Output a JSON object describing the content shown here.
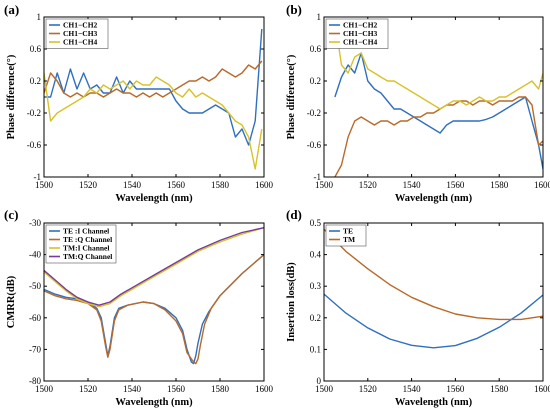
{
  "chart_data": [
    {
      "type": "line",
      "panel_label": "(a)",
      "xlabel": "Wavelength (nm)",
      "ylabel": "Phase difference(°)",
      "xlim": [
        1500,
        1600
      ],
      "ylim": [
        -1,
        1
      ],
      "xticks": [
        1500,
        1520,
        1540,
        1560,
        1580,
        1600
      ],
      "xtick_labels": [
        "1500",
        "1520",
        "1540",
        "1560",
        "1580",
        "1600"
      ],
      "yticks": [
        -1,
        -0.6,
        -0.2,
        0.2,
        0.6,
        1
      ],
      "ytick_labels": [
        "-1",
        "-0.6",
        "-0.2",
        "0.2",
        "0.6",
        "1"
      ],
      "legend_position": "top-left",
      "series": [
        {
          "name": "CH1−CH2",
          "color": "#2f6fc0",
          "x": [
            1500,
            1503,
            1506,
            1509,
            1512,
            1515,
            1518,
            1521,
            1524,
            1527,
            1530,
            1533,
            1536,
            1539,
            1542,
            1545,
            1548,
            1551,
            1554,
            1557,
            1560,
            1563,
            1566,
            1569,
            1572,
            1575,
            1578,
            1581,
            1584,
            1587,
            1590,
            1593,
            1596,
            1599
          ],
          "y": [
            0.0,
            0.0,
            0.3,
            0.05,
            0.35,
            0.1,
            0.3,
            0.1,
            0.15,
            0.05,
            0.05,
            0.25,
            0.05,
            0.2,
            0.1,
            0.1,
            0.1,
            0.1,
            0.1,
            0.1,
            -0.05,
            -0.15,
            -0.2,
            -0.2,
            -0.2,
            -0.15,
            -0.1,
            -0.15,
            -0.2,
            -0.5,
            -0.4,
            -0.6,
            -0.3,
            0.85
          ]
        },
        {
          "name": "CH1−CH3",
          "color": "#b86a2a",
          "x": [
            1500,
            1503,
            1506,
            1509,
            1512,
            1515,
            1518,
            1521,
            1524,
            1527,
            1530,
            1533,
            1536,
            1539,
            1542,
            1545,
            1548,
            1551,
            1554,
            1557,
            1560,
            1563,
            1566,
            1569,
            1572,
            1575,
            1578,
            1581,
            1584,
            1587,
            1590,
            1593,
            1596,
            1599
          ],
          "y": [
            0.05,
            0.3,
            0.2,
            0.05,
            0.0,
            0.05,
            0.0,
            0.05,
            0.05,
            0.0,
            0.05,
            0.1,
            0.05,
            0.05,
            0.0,
            0.05,
            0.0,
            0.05,
            0.0,
            0.05,
            0.1,
            0.15,
            0.2,
            0.2,
            0.25,
            0.2,
            0.25,
            0.35,
            0.3,
            0.25,
            0.3,
            0.4,
            0.35,
            0.45
          ]
        },
        {
          "name": "CH1−CH4",
          "color": "#d8c22a",
          "x": [
            1500,
            1503,
            1506,
            1509,
            1512,
            1515,
            1518,
            1521,
            1524,
            1527,
            1530,
            1533,
            1536,
            1539,
            1542,
            1545,
            1548,
            1551,
            1554,
            1557,
            1560,
            1563,
            1566,
            1569,
            1572,
            1575,
            1578,
            1581,
            1584,
            1587,
            1590,
            1593,
            1596,
            1599
          ],
          "y": [
            0.3,
            -0.3,
            -0.2,
            -0.15,
            -0.1,
            -0.05,
            0.0,
            0.1,
            0.05,
            0.15,
            0.1,
            0.15,
            0.2,
            0.1,
            0.2,
            0.15,
            0.15,
            0.25,
            0.2,
            0.15,
            0.05,
            0.0,
            0.1,
            0.0,
            0.05,
            0.0,
            -0.05,
            -0.1,
            -0.2,
            -0.3,
            -0.35,
            -0.5,
            -0.9,
            -0.4
          ]
        }
      ]
    },
    {
      "type": "line",
      "panel_label": "(b)",
      "xlabel": "Wavelength (nm)",
      "ylabel": "Phase difference(°)",
      "xlim": [
        1500,
        1600
      ],
      "ylim": [
        -1,
        1
      ],
      "xticks": [
        1500,
        1520,
        1540,
        1560,
        1580,
        1600
      ],
      "xtick_labels": [
        "1500",
        "1520",
        "1540",
        "1560",
        "1580",
        "1600"
      ],
      "yticks": [
        -1,
        -0.6,
        -0.2,
        0.2,
        0.6,
        1
      ],
      "ytick_labels": [
        "-1",
        "-0.6",
        "-0.2",
        "0.2",
        "0.6",
        "1"
      ],
      "legend_position": "top-left",
      "series": [
        {
          "name": "CH1−CH2",
          "color": "#2f6fc0",
          "x": [
            1505,
            1508,
            1511,
            1514,
            1517,
            1520,
            1523,
            1526,
            1529,
            1532,
            1535,
            1538,
            1541,
            1544,
            1547,
            1550,
            1553,
            1556,
            1559,
            1562,
            1565,
            1568,
            1571,
            1574,
            1577,
            1580,
            1583,
            1586,
            1589,
            1592,
            1595,
            1598,
            1600
          ],
          "y": [
            0.0,
            0.25,
            0.4,
            0.3,
            0.55,
            0.2,
            0.1,
            0.05,
            -0.05,
            -0.15,
            -0.15,
            -0.2,
            -0.25,
            -0.3,
            -0.35,
            -0.4,
            -0.45,
            -0.35,
            -0.3,
            -0.3,
            -0.3,
            -0.3,
            -0.3,
            -0.28,
            -0.25,
            -0.2,
            -0.15,
            -0.1,
            -0.05,
            0.0,
            -0.3,
            -0.6,
            -0.9
          ]
        },
        {
          "name": "CH1−CH3",
          "color": "#b86a2a",
          "x": [
            1505,
            1508,
            1511,
            1514,
            1517,
            1520,
            1523,
            1526,
            1529,
            1532,
            1535,
            1538,
            1541,
            1544,
            1547,
            1550,
            1553,
            1556,
            1559,
            1562,
            1565,
            1568,
            1571,
            1574,
            1577,
            1580,
            1583,
            1586,
            1589,
            1592,
            1595,
            1598,
            1600
          ],
          "y": [
            -1.0,
            -0.85,
            -0.5,
            -0.3,
            -0.25,
            -0.3,
            -0.35,
            -0.3,
            -0.3,
            -0.35,
            -0.3,
            -0.3,
            -0.25,
            -0.25,
            -0.2,
            -0.2,
            -0.15,
            -0.1,
            -0.1,
            -0.05,
            -0.05,
            -0.1,
            -0.05,
            -0.05,
            -0.1,
            -0.05,
            -0.05,
            -0.05,
            0.0,
            0.0,
            -0.1,
            -0.6,
            -0.55
          ]
        },
        {
          "name": "CH1−CH4",
          "color": "#d8c22a",
          "x": [
            1505,
            1508,
            1511,
            1514,
            1517,
            1520,
            1523,
            1526,
            1529,
            1532,
            1535,
            1538,
            1541,
            1544,
            1547,
            1550,
            1553,
            1556,
            1559,
            1562,
            1565,
            1568,
            1571,
            1574,
            1577,
            1580,
            1583,
            1586,
            1589,
            1592,
            1595,
            1598,
            1600
          ],
          "y": [
            0.95,
            0.4,
            0.3,
            0.5,
            0.55,
            0.35,
            0.3,
            0.25,
            0.2,
            0.2,
            0.15,
            0.1,
            0.05,
            0.0,
            -0.05,
            -0.1,
            -0.15,
            -0.1,
            -0.05,
            -0.05,
            -0.1,
            -0.05,
            0.0,
            -0.05,
            -0.05,
            0.0,
            0.0,
            0.05,
            0.1,
            0.15,
            0.2,
            0.1,
            0.3
          ]
        }
      ]
    },
    {
      "type": "line",
      "panel_label": "(c)",
      "xlabel": "Wavelength (nm)",
      "ylabel": "CMRR(dB)",
      "xlim": [
        1500,
        1600
      ],
      "ylim": [
        -80,
        -30
      ],
      "xticks": [
        1500,
        1520,
        1540,
        1560,
        1580,
        1600
      ],
      "xtick_labels": [
        "1500",
        "1520",
        "1540",
        "1560",
        "1580",
        "1600"
      ],
      "yticks": [
        -80,
        -70,
        -60,
        -50,
        -40,
        -30
      ],
      "ytick_labels": [
        "-80",
        "-70",
        "-60",
        "-50",
        "-40",
        "-30"
      ],
      "legend_position": "top-left",
      "series": [
        {
          "name": "TE :I Channel",
          "color": "#2f6fc0",
          "x": [
            1500,
            1505,
            1510,
            1515,
            1520,
            1524,
            1526,
            1528,
            1529,
            1530,
            1532,
            1534,
            1538,
            1545,
            1550,
            1555,
            1560,
            1563,
            1565,
            1567,
            1568,
            1569,
            1570,
            1572,
            1575,
            1580,
            1590,
            1600
          ],
          "y": [
            -51,
            -52.5,
            -53.5,
            -54,
            -55,
            -57,
            -60,
            -68,
            -72,
            -69,
            -60,
            -57,
            -56,
            -55,
            -55.5,
            -57,
            -60,
            -64,
            -70,
            -74,
            -74.5,
            -72,
            -68,
            -62,
            -58,
            -53,
            -46,
            -40
          ]
        },
        {
          "name": "TE :Q Channel",
          "color": "#b86a2a",
          "x": [
            1500,
            1505,
            1510,
            1515,
            1520,
            1524,
            1526,
            1528,
            1529,
            1530,
            1532,
            1534,
            1538,
            1545,
            1550,
            1555,
            1560,
            1563,
            1565,
            1568,
            1569,
            1570,
            1571,
            1573,
            1576,
            1580,
            1590,
            1600
          ],
          "y": [
            -51.5,
            -53,
            -54,
            -54.5,
            -55.5,
            -57.5,
            -61,
            -69,
            -72.5,
            -70,
            -61,
            -57.5,
            -56,
            -55,
            -55.5,
            -57.5,
            -61,
            -65,
            -71,
            -74,
            -74.5,
            -73,
            -69,
            -62,
            -57,
            -53,
            -46,
            -40
          ]
        },
        {
          "name": "TM:I Channel",
          "color": "#d8c22a",
          "x": [
            1500,
            1505,
            1510,
            1515,
            1520,
            1525,
            1530,
            1535,
            1540,
            1550,
            1560,
            1570,
            1580,
            1590,
            1600
          ],
          "y": [
            -45.5,
            -48.5,
            -51.5,
            -54,
            -55.5,
            -56.5,
            -55.5,
            -53,
            -51,
            -47,
            -43,
            -39,
            -36,
            -33.5,
            -31.5
          ]
        },
        {
          "name": "TM:Q Channel",
          "color": "#7a3a9a",
          "x": [
            1500,
            1505,
            1510,
            1515,
            1520,
            1525,
            1530,
            1535,
            1540,
            1550,
            1560,
            1570,
            1580,
            1590,
            1600
          ],
          "y": [
            -45,
            -48,
            -51,
            -53.5,
            -55,
            -56,
            -55,
            -52.5,
            -50.5,
            -46.5,
            -42.5,
            -38.5,
            -35.5,
            -33,
            -31.5
          ]
        }
      ]
    },
    {
      "type": "line",
      "panel_label": "(d)",
      "xlabel": "Wavelength (nm)",
      "ylabel": "Insertion loss(dB)",
      "xlim": [
        1500,
        1600
      ],
      "ylim": [
        0,
        0.5
      ],
      "xticks": [
        1500,
        1520,
        1540,
        1560,
        1580,
        1600
      ],
      "xtick_labels": [
        "1500",
        "1520",
        "1540",
        "1560",
        "1580",
        "1600"
      ],
      "yticks": [
        0,
        0.1,
        0.2,
        0.3,
        0.4,
        0.5
      ],
      "ytick_labels": [
        "0",
        "0.1",
        "0.2",
        "0.3",
        "0.4",
        "0.5"
      ],
      "legend_position": "top-left",
      "series": [
        {
          "name": "TE",
          "color": "#2f6fc0",
          "x": [
            1500,
            1510,
            1520,
            1530,
            1540,
            1550,
            1560,
            1570,
            1580,
            1590,
            1600
          ],
          "y": [
            0.275,
            0.215,
            0.168,
            0.133,
            0.113,
            0.105,
            0.112,
            0.135,
            0.17,
            0.215,
            0.272
          ]
        },
        {
          "name": "TM",
          "color": "#b86a2a",
          "x": [
            1500,
            1510,
            1520,
            1530,
            1540,
            1550,
            1560,
            1570,
            1580,
            1590,
            1600
          ],
          "y": [
            0.48,
            0.41,
            0.355,
            0.305,
            0.265,
            0.235,
            0.212,
            0.2,
            0.195,
            0.195,
            0.205
          ]
        }
      ]
    }
  ]
}
